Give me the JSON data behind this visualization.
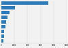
{
  "values": [
    7200,
    2100,
    1300,
    950,
    750,
    600,
    450,
    380,
    300
  ],
  "bar_color": "#2b7bba",
  "background_color": "#f2f2f2",
  "grid_color": "#cccccc",
  "xlim": [
    0,
    10000
  ],
  "bar_height": 0.75
}
